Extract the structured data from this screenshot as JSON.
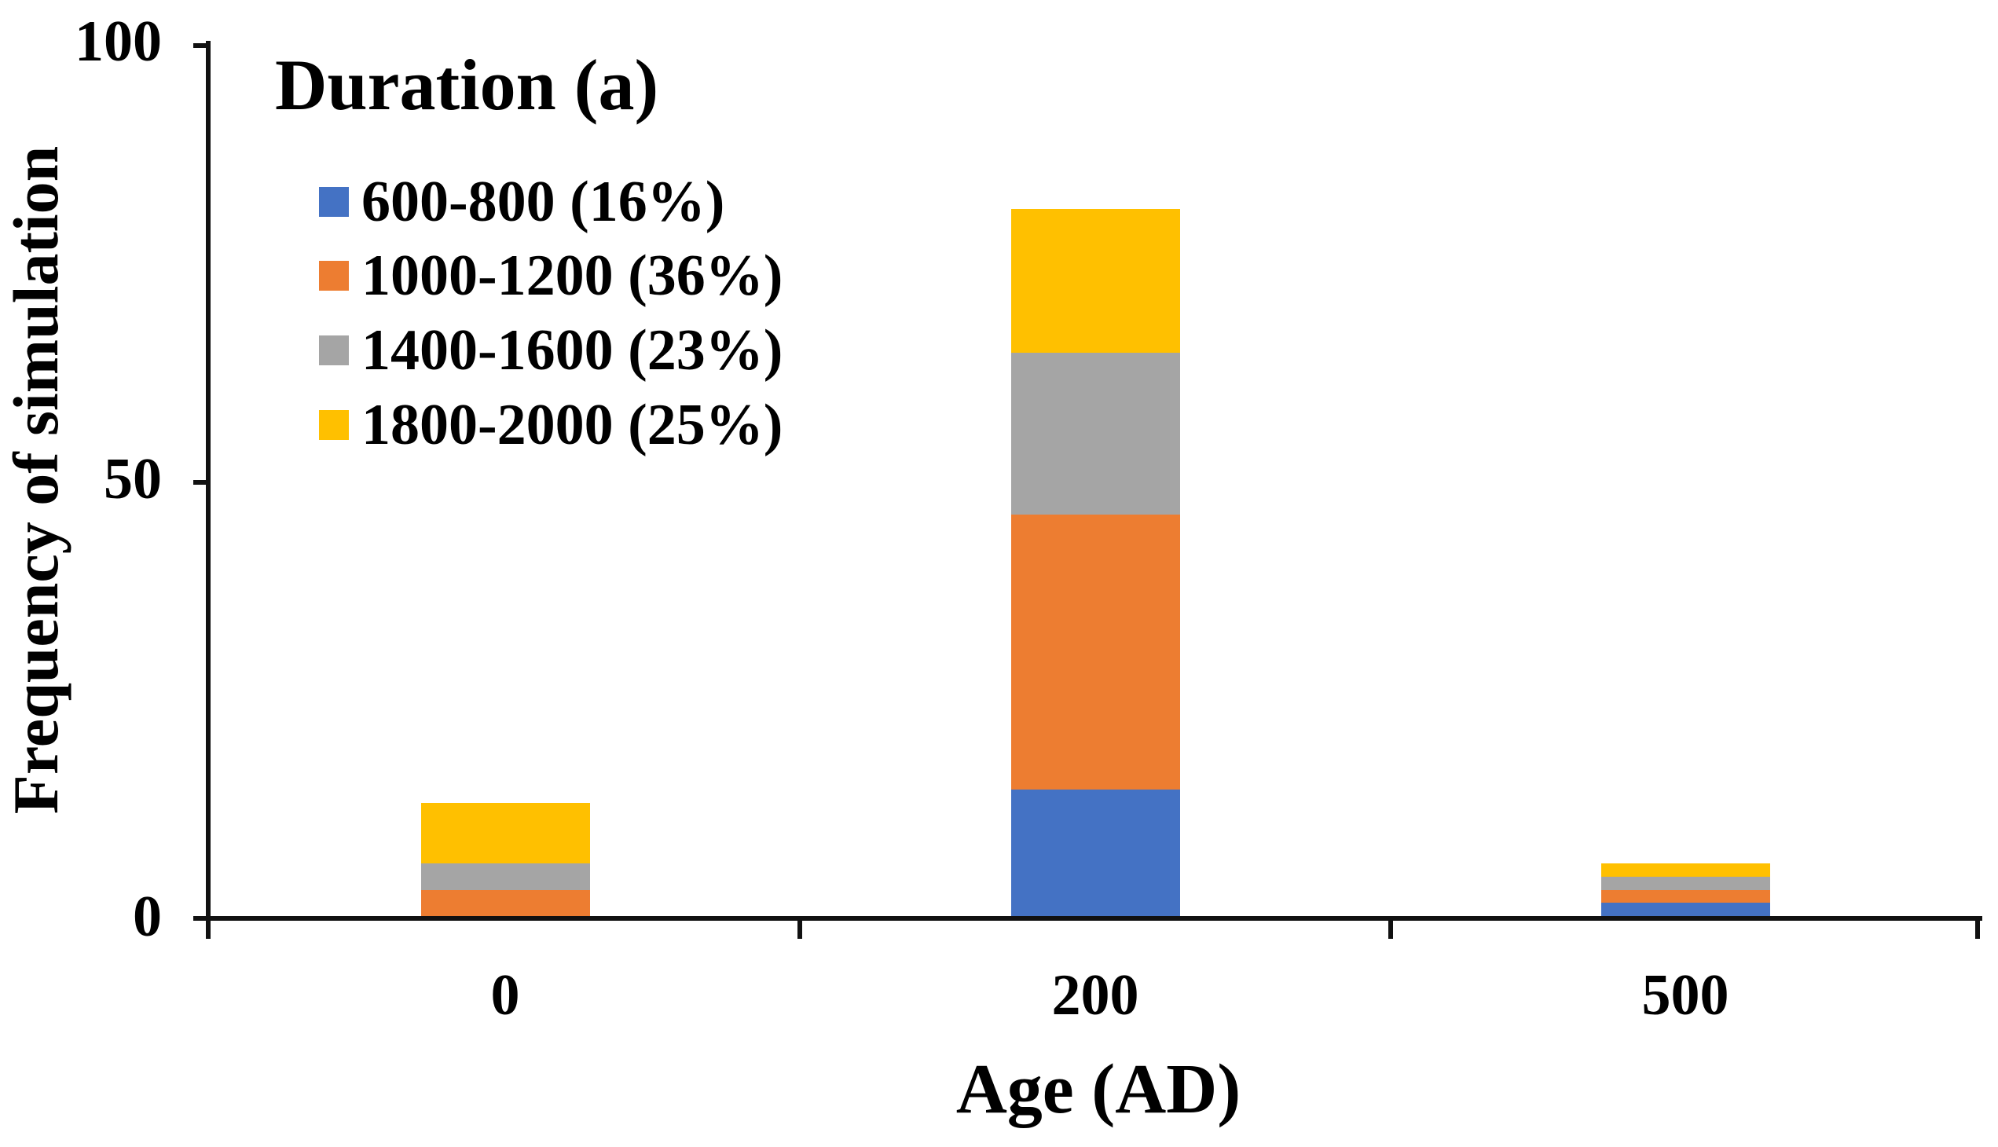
{
  "chart_data": {
    "type": "bar",
    "subtype": "stacked-vertical",
    "title": "",
    "xlabel": "Age (AD)",
    "ylabel": "Frequency of simulation",
    "categories": [
      "0",
      "200",
      "500"
    ],
    "y_ticks": [
      "0",
      "50",
      "100"
    ],
    "ylim": [
      0,
      100
    ],
    "grid": false,
    "legend_position": "top-left-inside",
    "legend_title": "Duration (a)",
    "series": [
      {
        "name": "600-800 (16%)",
        "color": "#4472C4",
        "values": [
          0,
          14.5,
          1.5
        ]
      },
      {
        "name": "1000-1200 (36%)",
        "color": "#ED7D31",
        "values": [
          3,
          31.5,
          1.5
        ]
      },
      {
        "name": "1400-1600 (23%)",
        "color": "#A5A5A5",
        "values": [
          3,
          18.5,
          1.5
        ]
      },
      {
        "name": "1800-2000 (25%)",
        "color": "#FFC000",
        "values": [
          7,
          16.5,
          1.5
        ]
      }
    ],
    "axis_color": "#111111",
    "text_color": "#000000"
  }
}
